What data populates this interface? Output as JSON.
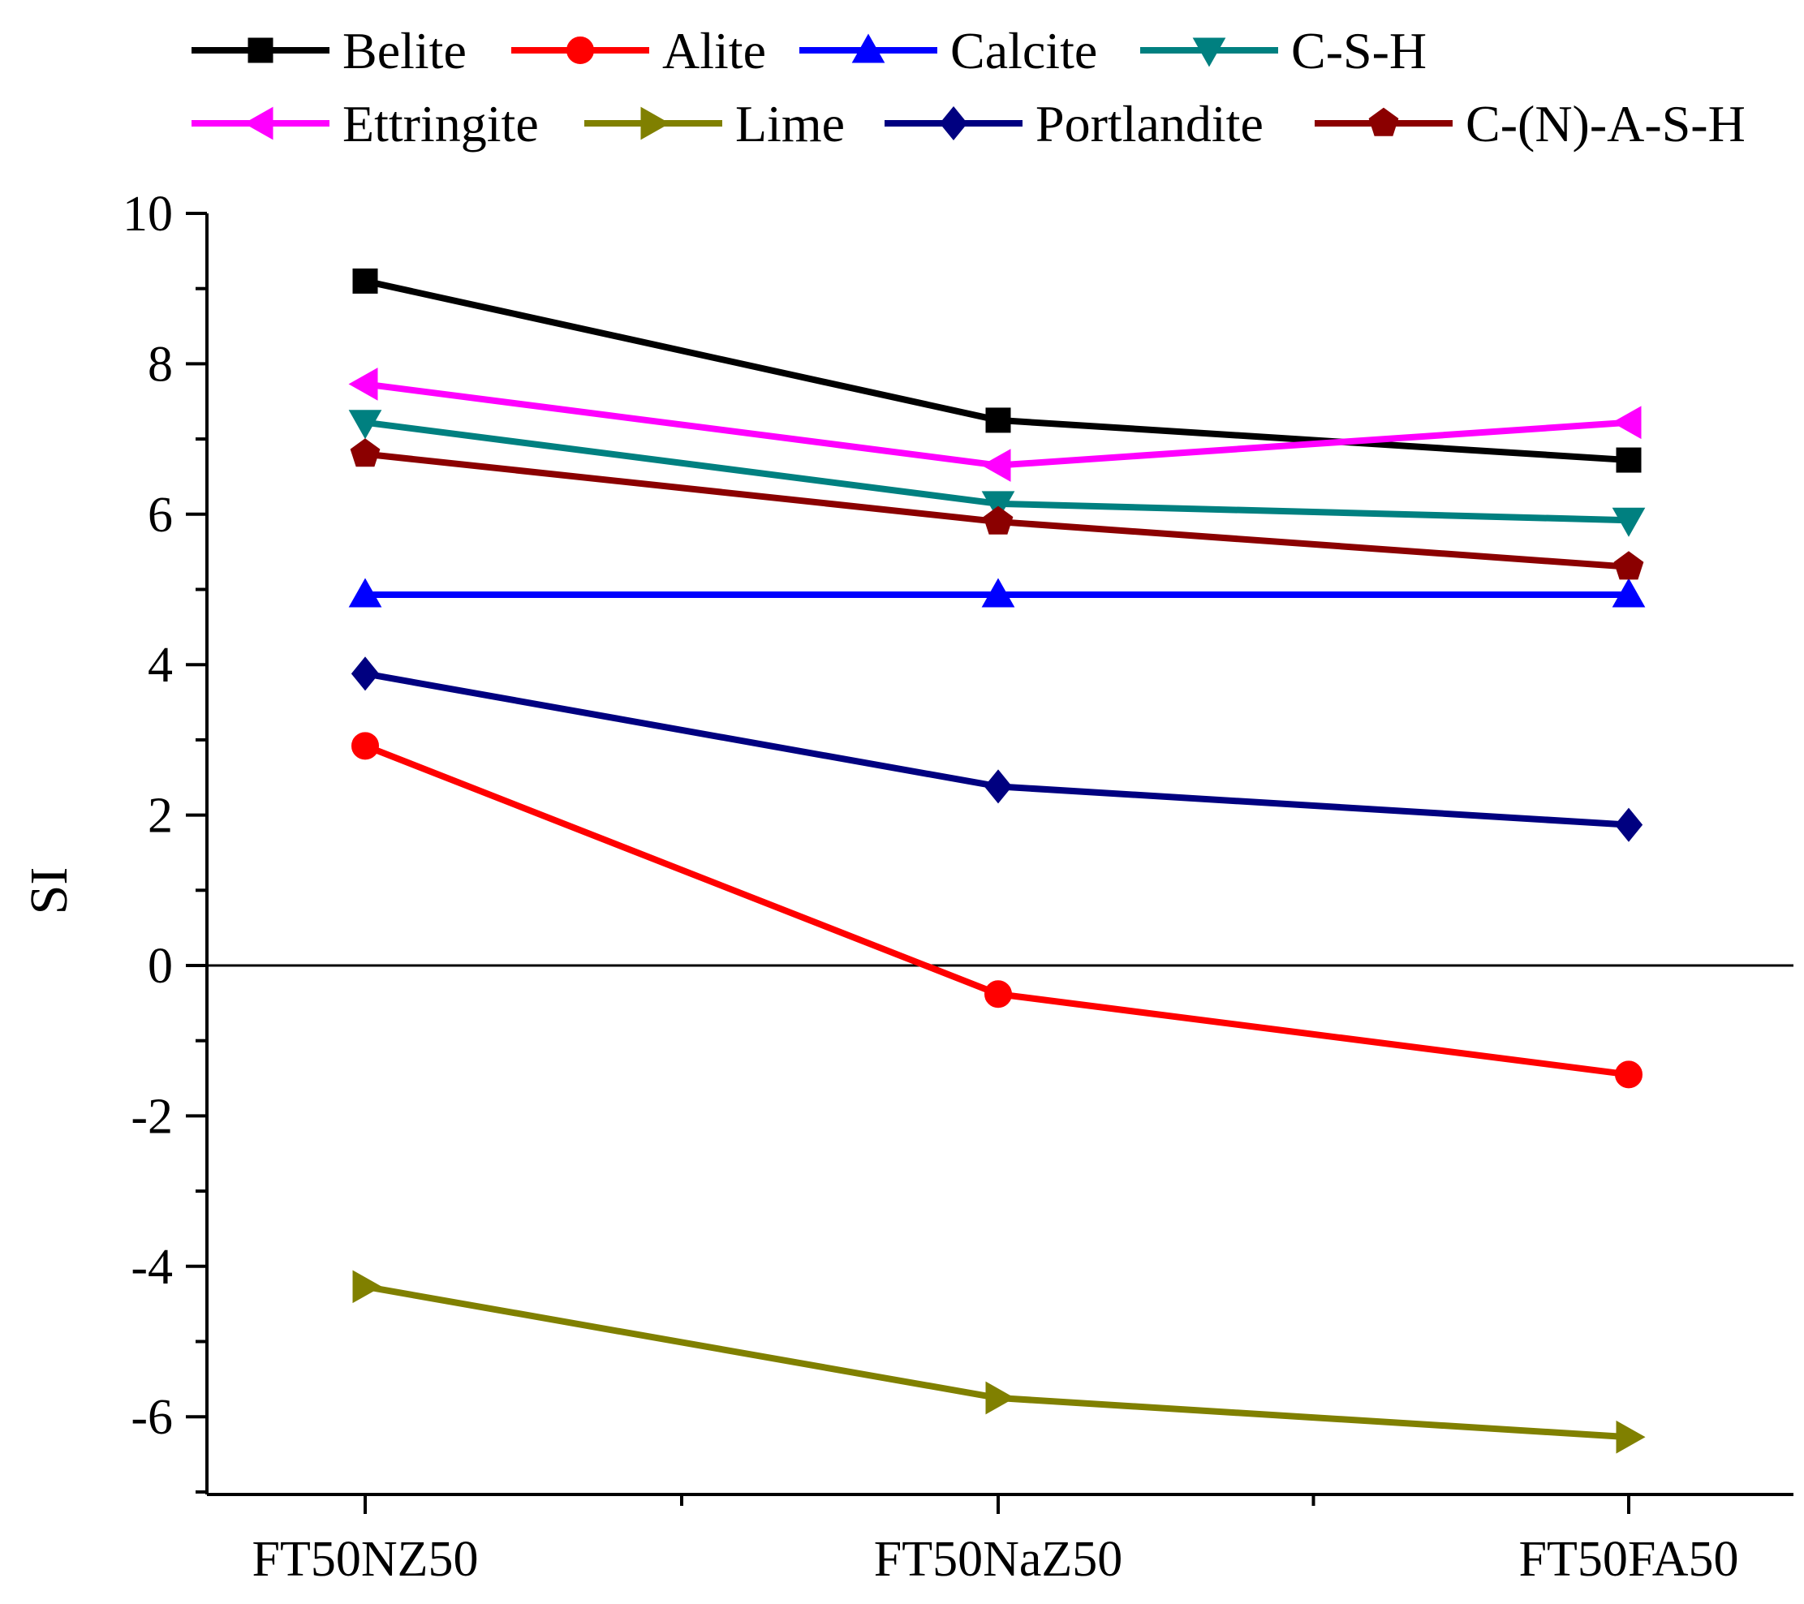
{
  "chart_data": {
    "type": "line",
    "title": "",
    "xlabel": "",
    "ylabel": "SI",
    "ylim": [
      -7,
      10
    ],
    "yticks": [
      -6,
      -4,
      -2,
      0,
      2,
      4,
      6,
      8,
      10
    ],
    "ytick_labels": [
      "-6",
      "-4",
      "-2",
      "0",
      "2",
      "4",
      "6",
      "8",
      "10"
    ],
    "categories": [
      "FT50NZ50",
      "FT50NaZ50",
      "FT50FA50"
    ],
    "zero_line": true,
    "legend_position": "top",
    "series": [
      {
        "name": "Belite",
        "color": "#000000",
        "marker": "square",
        "values": [
          9.1,
          7.25,
          6.72
        ]
      },
      {
        "name": "Alite",
        "color": "#ff0000",
        "marker": "circle",
        "values": [
          2.92,
          -0.38,
          -1.45
        ]
      },
      {
        "name": "Calcite",
        "color": "#0000ff",
        "marker": "triangle-up",
        "values": [
          4.93,
          4.93,
          4.93
        ]
      },
      {
        "name": "C-S-H",
        "color": "#008080",
        "marker": "triangle-down",
        "values": [
          7.22,
          6.14,
          5.92
        ]
      },
      {
        "name": "Ettringite",
        "color": "#ff00ff",
        "marker": "triangle-left",
        "values": [
          7.73,
          6.65,
          7.22
        ]
      },
      {
        "name": "Lime",
        "color": "#808000",
        "marker": "triangle-right",
        "values": [
          -4.27,
          -5.75,
          -6.27
        ]
      },
      {
        "name": "Portlandite",
        "color": "#000080",
        "marker": "diamond",
        "values": [
          3.88,
          2.38,
          1.87
        ]
      },
      {
        "name": "C-(N)-A-S-H",
        "color": "#8b0000",
        "marker": "pentagon",
        "values": [
          6.8,
          5.9,
          5.3
        ]
      }
    ]
  }
}
